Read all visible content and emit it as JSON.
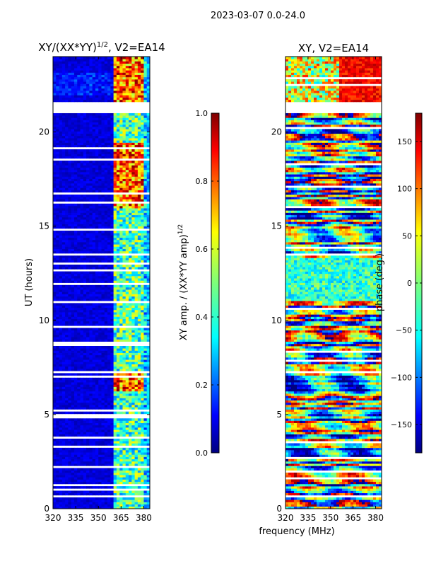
{
  "figure": {
    "suptitle": "2023-03-07 0.0-24.0",
    "xlabel_shared": "frequency (MHz)"
  },
  "chart_data": [
    {
      "type": "heatmap",
      "title_main": "XY/(XX*YY)",
      "title_exp": "1/2",
      "title_tail": ", V2=EA14",
      "xlabel": "",
      "ylabel": "UT (hours)",
      "xlim": [
        320,
        384
      ],
      "ylim": [
        0,
        24
      ],
      "xticks": [
        320,
        335,
        350,
        365,
        380
      ],
      "yticks": [
        0,
        5,
        10,
        15,
        20
      ],
      "empty_ut_rows": [
        [
          21.0,
          21.6
        ],
        [
          13.4,
          13.6
        ],
        [
          13.0,
          13.1
        ],
        [
          7.2,
          7.3
        ],
        [
          4.8,
          5.0
        ],
        [
          0.6,
          0.7
        ]
      ],
      "bright_band_mhz": [
        [
          361,
          363
        ],
        [
          364,
          366
        ],
        [
          367,
          369
        ],
        [
          371,
          373
        ],
        [
          375,
          377
        ],
        [
          378,
          380
        ]
      ],
      "colorbar": {
        "label_main": "XY amp. / (XX*YY amp)",
        "label_exp": "1/2",
        "range": [
          0.0,
          1.0
        ],
        "ticks": [
          "0.0",
          "0.2",
          "0.4",
          "0.6",
          "0.8",
          "1.0"
        ]
      }
    },
    {
      "type": "heatmap",
      "title": "XY, V2=EA14",
      "xlabel": "",
      "ylabel": "",
      "xlim": [
        320,
        384
      ],
      "ylim": [
        0,
        24
      ],
      "xticks": [
        320,
        335,
        350,
        365,
        380
      ],
      "yticks": [
        0,
        5,
        10,
        15,
        20
      ],
      "empty_ut_rows": [
        [
          21.0,
          21.6
        ],
        [
          13.4,
          13.6
        ],
        [
          7.2,
          7.3
        ],
        [
          0.6,
          0.7
        ]
      ],
      "colorbar": {
        "label": "phase (deg.)",
        "range": [
          -180,
          180
        ],
        "ticks": [
          "−150",
          "−100",
          "−50",
          "0",
          "50",
          "100",
          "150"
        ]
      }
    }
  ]
}
